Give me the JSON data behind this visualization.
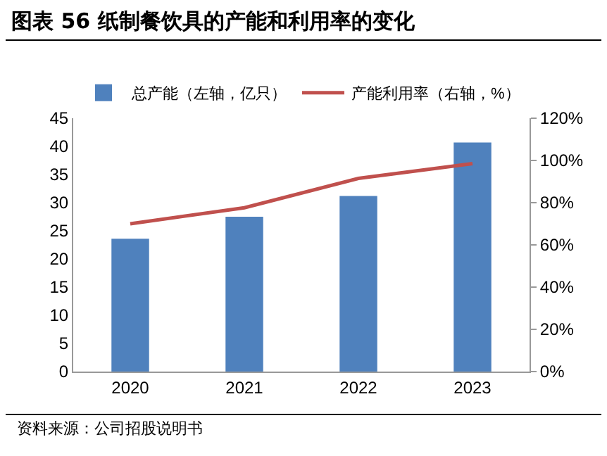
{
  "chart_data": {
    "type": "bar",
    "title": "图表 56 纸制餐饮具的产能和利用率的变化",
    "categories": [
      "2020",
      "2021",
      "2022",
      "2023"
    ],
    "series": [
      {
        "name": "总产能（左轴，亿只）",
        "color": "#4f81bd",
        "values": [
          23.6,
          27.5,
          31.2,
          40.7
        ]
      },
      {
        "name": "产能利用率（右轴，%）",
        "type": "line",
        "axis": "y2",
        "color": "#c0504d",
        "values": [
          70,
          77.6,
          91.5,
          98.5
        ]
      }
    ],
    "ylim": [
      0,
      45
    ],
    "yticks": [
      0,
      5,
      10,
      15,
      20,
      25,
      30,
      35,
      40,
      45
    ],
    "y2lim": [
      0,
      120
    ],
    "y2ticks": [
      {
        "value": 0,
        "label": "0%"
      },
      {
        "value": 20,
        "label": "20%"
      },
      {
        "value": 40,
        "label": "40%"
      },
      {
        "value": 60,
        "label": "60%"
      },
      {
        "value": 80,
        "label": "80%"
      },
      {
        "value": 100,
        "label": "100%"
      },
      {
        "value": 120,
        "label": "120%"
      }
    ],
    "grid": false,
    "legend": "top",
    "annotations": [
      "资料来源：公司招股说明书"
    ]
  }
}
